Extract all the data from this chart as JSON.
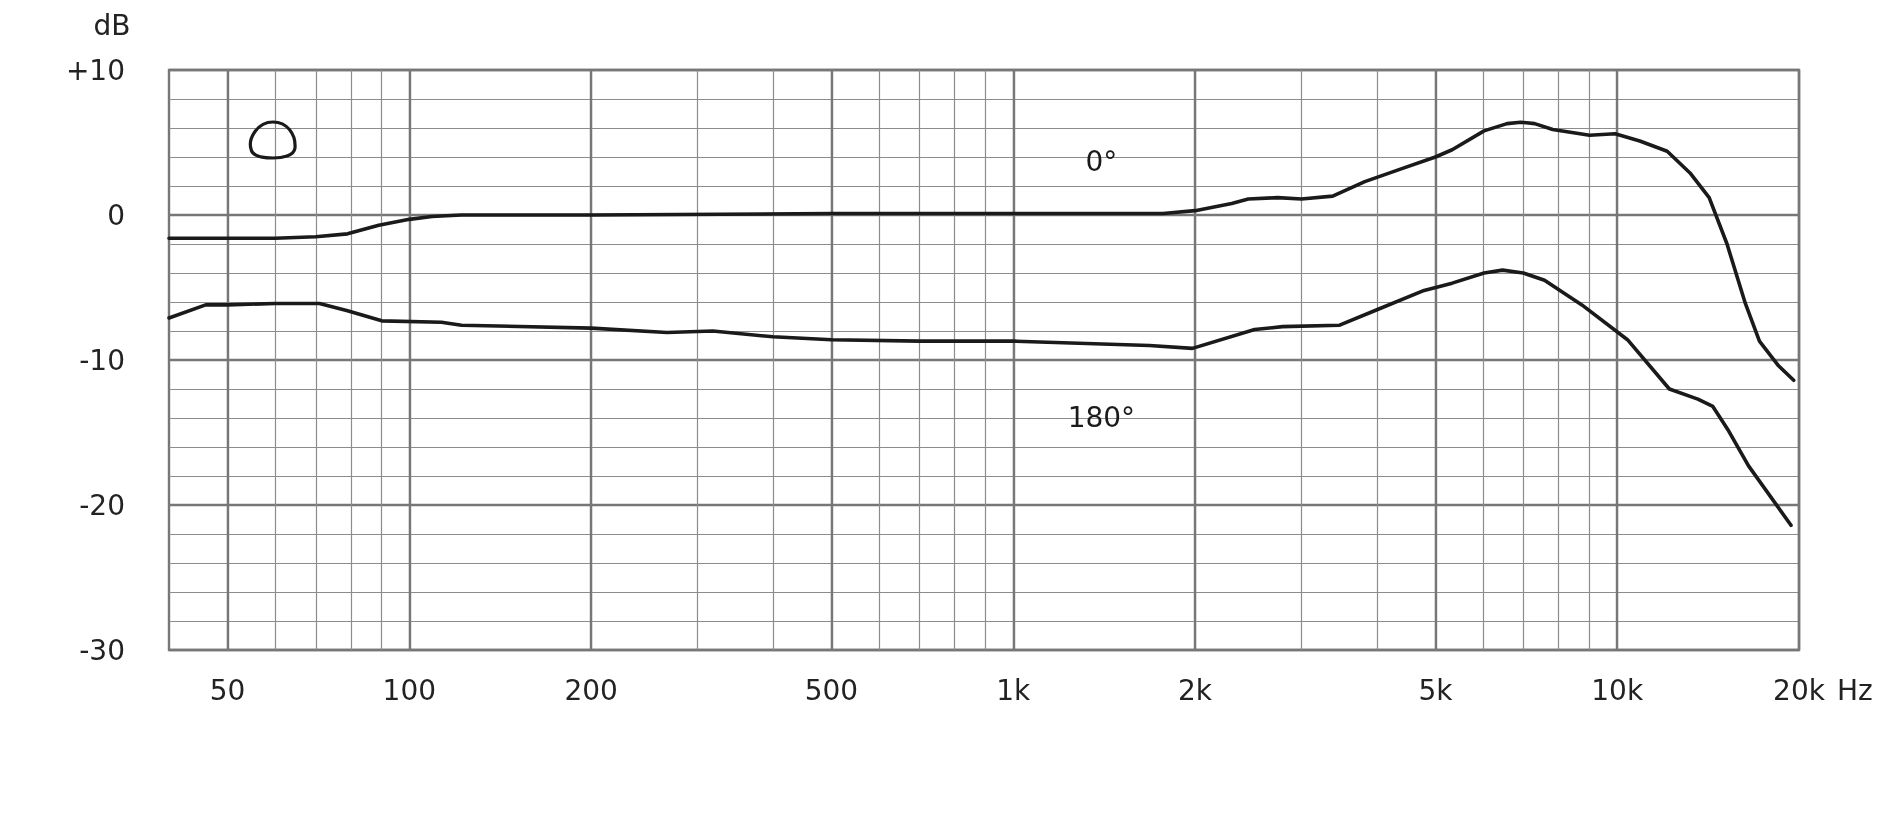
{
  "chart_data": {
    "type": "line",
    "xlabel": "Hz",
    "ylabel": "dB",
    "log": "x",
    "grid": true,
    "marker": "none",
    "line_style": "solid",
    "xlim": [
      40,
      20000
    ],
    "xticks": [
      50,
      {
        "value": 60,
        "label": null
      },
      {
        "value": 70,
        "label": null
      },
      {
        "value": 80,
        "label": null
      },
      {
        "value": 90,
        "label": null
      },
      100,
      200,
      {
        "value": 300,
        "label": null
      },
      {
        "value": 400,
        "label": null
      },
      500,
      {
        "value": 600,
        "label": null
      },
      {
        "value": 700,
        "label": null
      },
      {
        "value": 800,
        "label": null
      },
      {
        "value": 900,
        "label": null
      },
      {
        "value": 1000,
        "label": "1k"
      },
      {
        "value": 2000,
        "label": "2k"
      },
      {
        "value": 3000,
        "label": null
      },
      {
        "value": 4000,
        "label": null
      },
      {
        "value": 5000,
        "label": "5k"
      },
      {
        "value": 6000,
        "label": null
      },
      {
        "value": 7000,
        "label": null
      },
      {
        "value": 8000,
        "label": null
      },
      {
        "value": 9000,
        "label": null
      },
      {
        "value": 10000,
        "label": "10k"
      },
      {
        "value": 20000,
        "label": "20k"
      }
    ],
    "ylim": [
      -30,
      10
    ],
    "yticks": [
      -30,
      {
        "value": -28,
        "label": null
      },
      {
        "value": -26,
        "label": null
      },
      {
        "value": -24,
        "label": null
      },
      {
        "value": -22,
        "label": null
      },
      -20,
      {
        "value": -18,
        "label": null
      },
      {
        "value": -16,
        "label": null
      },
      {
        "value": -14,
        "label": null
      },
      {
        "value": -12,
        "label": null
      },
      -10,
      {
        "value": -8,
        "label": null
      },
      {
        "value": -6,
        "label": null
      },
      {
        "value": -4,
        "label": null
      },
      {
        "value": -2,
        "label": null
      },
      0,
      {
        "value": 2,
        "label": null
      },
      {
        "value": 4,
        "label": null
      },
      {
        "value": 6,
        "label": null
      },
      {
        "value": 8,
        "label": null
      },
      {
        "value": 10,
        "label": "+10"
      }
    ],
    "series": [
      {
        "name": "0°",
        "color": "#1a1a1a",
        "x": [
          40,
          50,
          60,
          70,
          79,
          89,
          100,
          109,
          122,
          200,
          500,
          1000,
          1770,
          2000,
          2300,
          2450,
          2740,
          3000,
          3380,
          3820,
          4400,
          5000,
          5330,
          6020,
          6570,
          6920,
          7300,
          7820,
          9000,
          9920,
          10900,
          12100,
          13200,
          14200,
          15200,
          16300,
          17200,
          18500,
          19600
        ],
        "values": [
          -1.6,
          -1.6,
          -1.6,
          -1.5,
          -1.3,
          -0.7,
          -0.3,
          -0.1,
          0,
          0,
          0.1,
          0.1,
          0.1,
          0.3,
          0.8,
          1.1,
          1.2,
          1.1,
          1.3,
          2.3,
          3.2,
          4.0,
          4.5,
          5.8,
          6.3,
          6.4,
          6.3,
          5.9,
          5.5,
          5.6,
          5.1,
          4.4,
          2.9,
          1.2,
          -2.0,
          -6.1,
          -8.7,
          -10.4,
          -11.4
        ]
      },
      {
        "name": "180°",
        "color": "#1a1a1a",
        "x": [
          40,
          46,
          50,
          60,
          71,
          79,
          90,
          113,
          122,
          200,
          267,
          318,
          400,
          500,
          700,
          1000,
          1680,
          1980,
          2510,
          2790,
          3470,
          4020,
          4790,
          5330,
          6020,
          6460,
          6990,
          7580,
          8740,
          10400,
          12200,
          13600,
          14400,
          15300,
          16500,
          19400
        ],
        "values": [
          -7.1,
          -6.2,
          -6.2,
          -6.1,
          -6.1,
          -6.6,
          -7.3,
          -7.4,
          -7.6,
          -7.8,
          -8.1,
          -8.0,
          -8.4,
          -8.6,
          -8.7,
          -8.7,
          -9.0,
          -9.2,
          -7.9,
          -7.7,
          -7.6,
          -6.5,
          -5.2,
          -4.7,
          -4.0,
          -3.8,
          -4.0,
          -4.5,
          -6.2,
          -8.6,
          -12.0,
          -12.7,
          -13.2,
          -14.9,
          -17.3,
          -21.4
        ]
      }
    ]
  }
}
